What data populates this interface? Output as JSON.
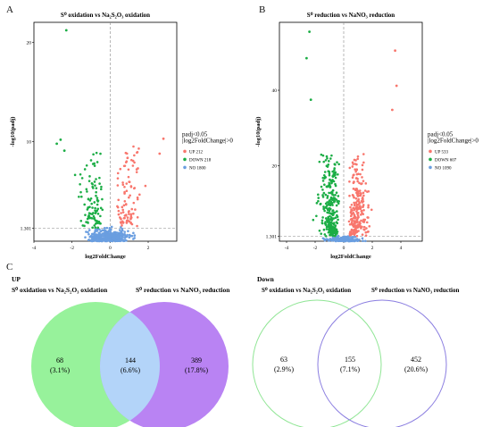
{
  "panel_letters": {
    "a": "A",
    "b": "B",
    "c": "C"
  },
  "chart_data": [
    {
      "type": "scatter",
      "title": "S⁰ oxidation vs Na₂S₂O₃ oxidation",
      "xlabel": "log2FoldChange",
      "ylabel": "-log10(padj)",
      "xlim": [
        -4,
        3.5
      ],
      "ylim": [
        0,
        22
      ],
      "xticks": [
        "-4",
        "-2",
        "0",
        "2"
      ],
      "xtickvals": [
        -4,
        -2,
        0,
        2
      ],
      "yticks": [
        "1.301",
        "10",
        "20"
      ],
      "ytickvals": [
        1.301,
        10,
        20
      ],
      "threshold_y": 1.301,
      "legend": {
        "placement": "right",
        "title_lines": [
          "padj<0.05",
          "|log2FoldChange|>0"
        ]
      },
      "series": [
        {
          "name": "UP 212",
          "color": "#f8766d",
          "count": 212
        },
        {
          "name": "DOWN 218",
          "color": "#1bad45",
          "count": 218
        },
        {
          "name": "NO 1800",
          "color": "#6a9ee0",
          "count": 1800
        }
      ],
      "outliers": [
        [
          -2.3,
          21.2
        ],
        [
          -2.6,
          10.2
        ],
        [
          -2.8,
          9.8
        ],
        [
          2.8,
          10.3
        ],
        [
          2.6,
          8.8
        ],
        [
          -2.4,
          9.1
        ]
      ]
    },
    {
      "type": "scatter",
      "title": "S⁰ reduction vs NaNO₃ reduction",
      "xlabel": "log2FoldChange",
      "ylabel": "-log10(padj)",
      "xlim": [
        -4.5,
        5.5
      ],
      "ylim": [
        0,
        58
      ],
      "xticks": [
        "-4",
        "-2",
        "0",
        "2",
        "4"
      ],
      "xtickvals": [
        -4,
        -2,
        0,
        2,
        4
      ],
      "yticks": [
        "1.301",
        "20",
        "40"
      ],
      "ytickvals": [
        1.301,
        20,
        40
      ],
      "threshold_y": 1.301,
      "legend": {
        "placement": "right",
        "title_lines": [
          "padj<0.05",
          "|log2FoldChange|>0"
        ]
      },
      "series": [
        {
          "name": "UP 533",
          "color": "#f8766d",
          "count": 533
        },
        {
          "name": "DOWN 607",
          "color": "#1bad45",
          "count": 607
        },
        {
          "name": "NO 1090",
          "color": "#6a9ee0",
          "count": 1090
        }
      ],
      "outliers": [
        [
          -2.4,
          55.5
        ],
        [
          -2.6,
          48.5
        ],
        [
          -2.3,
          37.5
        ],
        [
          3.6,
          50.5
        ],
        [
          3.7,
          41.2
        ],
        [
          3.4,
          34.8
        ]
      ]
    }
  ],
  "venn_up": {
    "label": "UP",
    "set_a_label": "S⁰ oxidation vs Na₂S₂O₃ oxidation",
    "set_b_label": "S⁰ reduction vs NaNO₃ reduction",
    "only_a": {
      "count": "68",
      "pct": "(3.1%)"
    },
    "both": {
      "count": "144",
      "pct": "(6.6%)"
    },
    "only_b": {
      "count": "389",
      "pct": "(17.8%)"
    },
    "color_a": "#97f29b",
    "color_b": "#b983f3",
    "color_overlap": "#b3d4f9"
  },
  "venn_down": {
    "label": "Down",
    "set_a_label": "S⁰ oxidation vs Na₂S₂O₃ oxidation",
    "set_b_label": "S⁰ reduction vs NaNO₃ reduction",
    "only_a": {
      "count": "63",
      "pct": "(2.9%)"
    },
    "both": {
      "count": "155",
      "pct": "(7.1%)"
    },
    "only_b": {
      "count": "452",
      "pct": "(20.6%)"
    },
    "color_a": "#8fe594",
    "color_b": "#8a7de0"
  }
}
